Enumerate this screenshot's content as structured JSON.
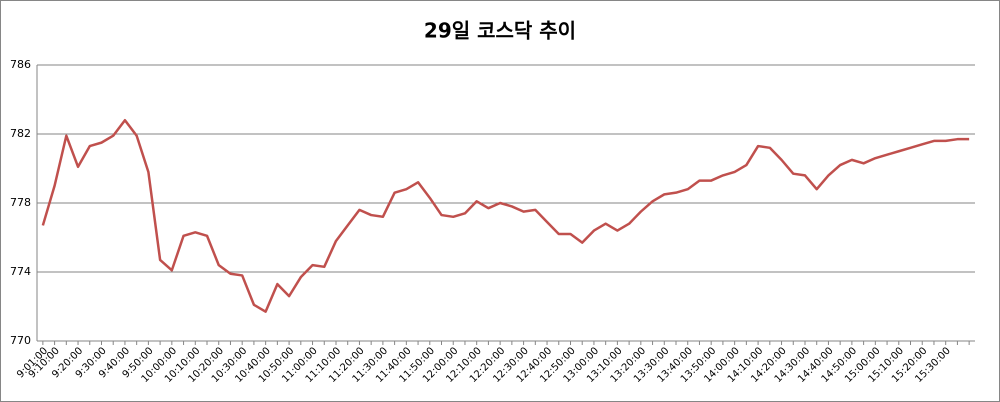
{
  "chart_data": {
    "type": "line",
    "title": "29일 코스닥 추이",
    "categories": [
      "9:01:00",
      "9:10:00",
      null,
      "9:20:00",
      null,
      "9:30:00",
      null,
      "9:40:00",
      null,
      "9:50:00",
      null,
      "10:00:00",
      null,
      "10:10:00",
      null,
      "10:20:00",
      null,
      "10:30:00",
      null,
      "10:40:00",
      null,
      "10:50:00",
      null,
      "11:00:00",
      null,
      "11:10:00",
      null,
      "11:20:00",
      null,
      "11:30:00",
      null,
      "11:40:00",
      null,
      "11:50:00",
      null,
      "12:00:00",
      null,
      "12:10:00",
      null,
      "12:20:00",
      null,
      "12:30:00",
      null,
      "12:40:00",
      null,
      "12:50:00",
      null,
      "13:00:00",
      null,
      "13:10:00",
      null,
      "13:20:00",
      null,
      "13:30:00",
      null,
      "13:40:00",
      null,
      "13:50:00",
      null,
      "14:00:00",
      null,
      "14:10:00",
      null,
      "14:20:00",
      null,
      "14:30:00",
      null,
      "14:40:00",
      null,
      "14:50:00",
      null,
      "15:00:00",
      null,
      "15:10:00",
      null,
      "15:20:00",
      null,
      "15:30:00",
      null,
      null
    ],
    "series": [
      {
        "color": "#c0504d",
        "values": [
          776.7,
          779,
          781.9,
          780.1,
          781.3,
          781.5,
          781.9,
          782.8,
          781.9,
          779.8,
          774.7,
          774.1,
          776.1,
          776.3,
          776.1,
          774.4,
          773.9,
          773.8,
          772.1,
          771.7,
          773.3,
          772.6,
          773.7,
          774.4,
          774.3,
          775.8,
          776.7,
          777.6,
          777.3,
          777.2,
          778.6,
          778.8,
          779.2,
          778.3,
          777.3,
          777.2,
          777.4,
          778.1,
          777.7,
          778.0,
          777.8,
          777.5,
          777.6,
          776.9,
          776.2,
          776.2,
          775.7,
          776.4,
          776.8,
          776.4,
          776.8,
          777.5,
          778.1,
          778.5,
          778.6,
          778.8,
          779.3,
          779.3,
          779.6,
          779.8,
          780.2,
          781.3,
          781.2,
          780.5,
          779.7,
          779.6,
          778.8,
          779.6,
          780.2,
          780.5,
          780.3,
          780.6,
          780.8,
          781.0,
          781.2,
          781.4,
          781.6,
          781.6,
          781.7,
          781.7
        ]
      }
    ],
    "ylim": [
      770,
      786
    ],
    "yticks": [
      770,
      774,
      778,
      782,
      786
    ],
    "grid": true
  }
}
